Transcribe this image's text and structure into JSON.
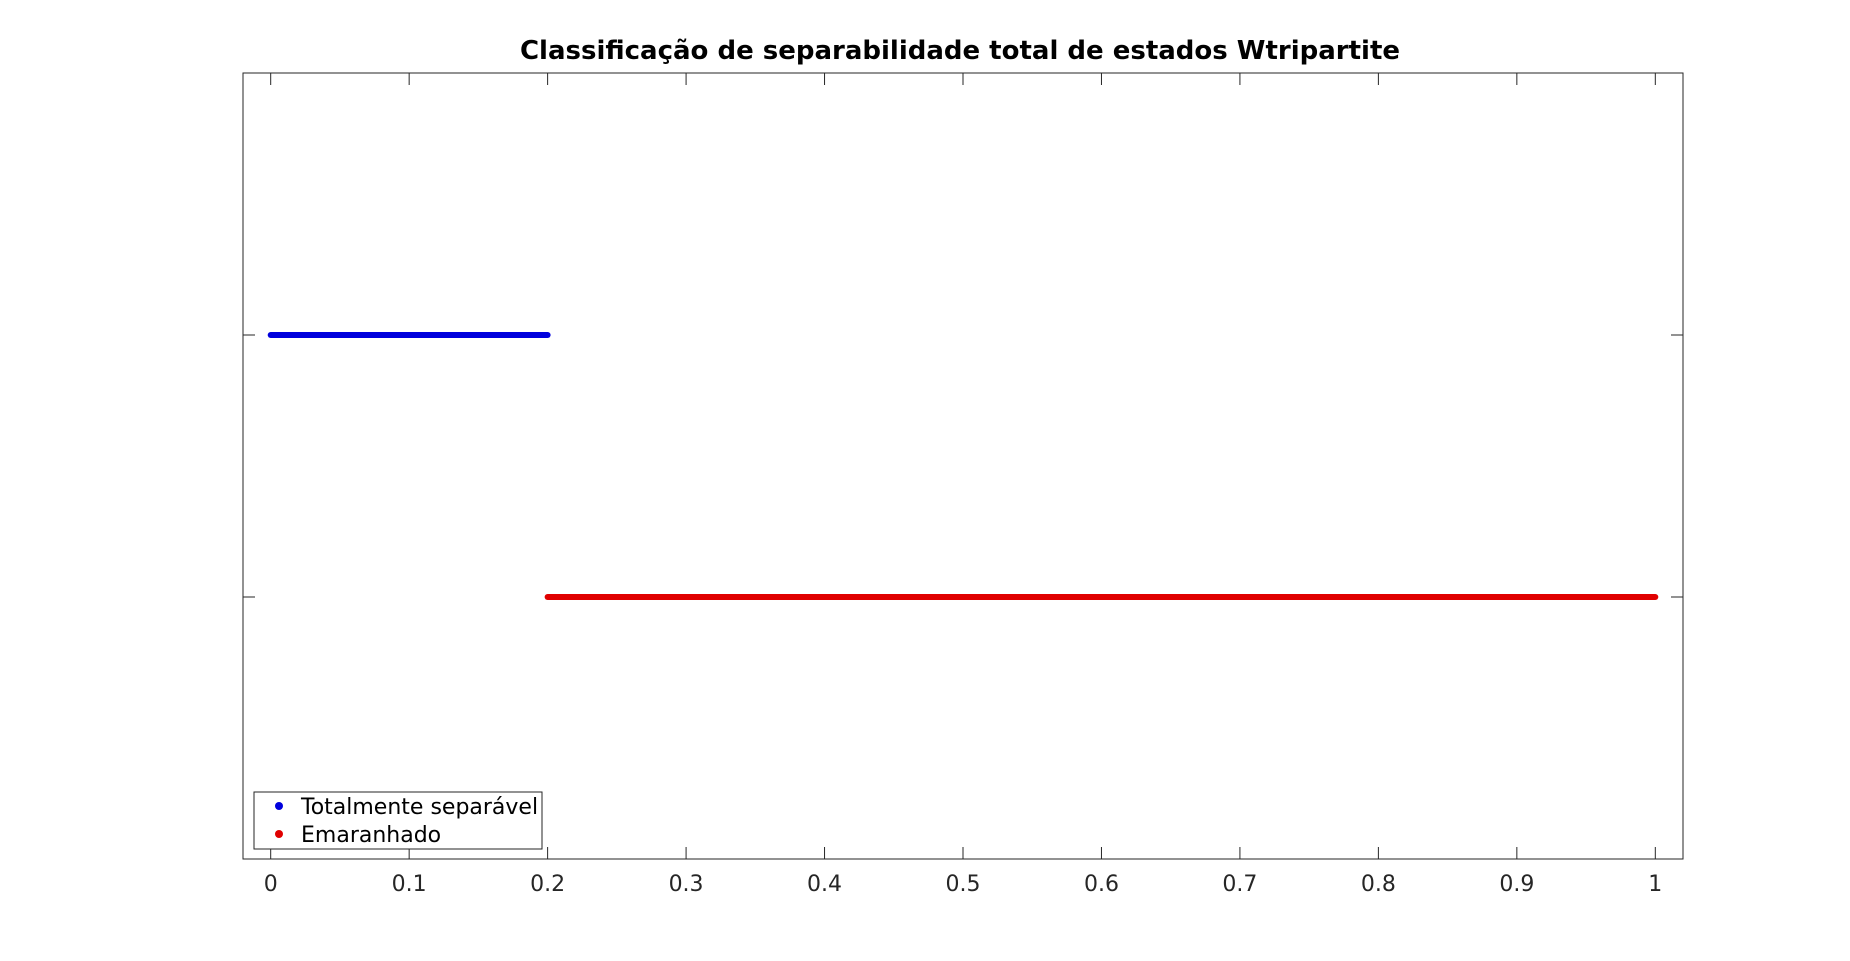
{
  "chart_data": {
    "type": "scatter",
    "title": "Classificação de separabilidade total de estados Wtripartite",
    "xlabel": "",
    "ylabel": "",
    "xlim": [
      -0.02,
      1.02
    ],
    "ylim": [
      0,
      3
    ],
    "x_ticks": [
      0,
      0.1,
      0.2,
      0.3,
      0.4,
      0.5,
      0.6,
      0.7,
      0.8,
      0.9,
      1
    ],
    "x_tick_labels": [
      "0",
      "0.1",
      "0.2",
      "0.3",
      "0.4",
      "0.5",
      "0.6",
      "0.7",
      "0.8",
      "0.9",
      "1"
    ],
    "y_ticks": [
      1,
      2
    ],
    "y_tick_labels": [
      "",
      ""
    ],
    "grid": false,
    "legend_position": "bottom-left",
    "series": [
      {
        "name": "Totalmente separável",
        "color": "#0000dd",
        "x_range": [
          0,
          0.2
        ],
        "y": 2
      },
      {
        "name": "Emaranhado",
        "color": "#e00000",
        "x_range": [
          0.2,
          1
        ],
        "y": 1
      }
    ]
  }
}
